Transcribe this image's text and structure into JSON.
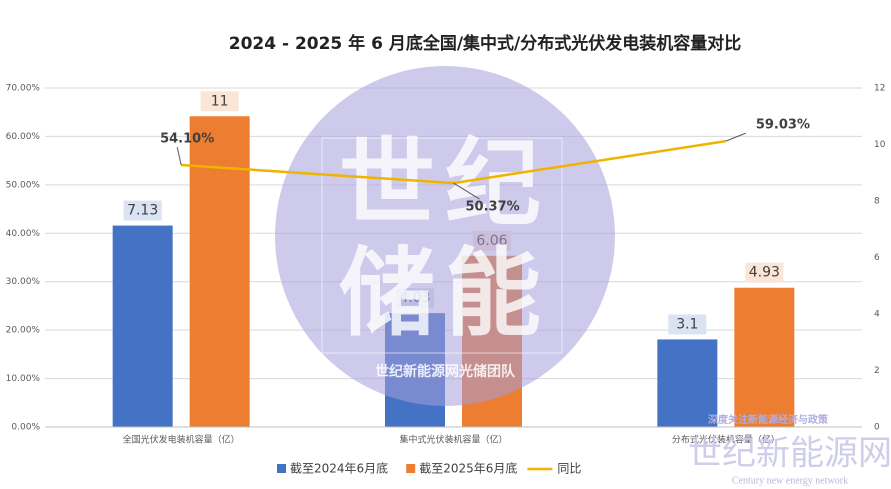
{
  "chart_data": {
    "type": "bar",
    "title": "2024 - 2025 年 6 月底全国/集中式/分布式光伏发电装机容量对比",
    "categories": [
      "全国光伏发电装机容量（亿）",
      "集中式光伏装机容量（亿）",
      "分布式光伏装机容量（亿）"
    ],
    "series": [
      {
        "name": "截至2024年6月底",
        "type": "bar",
        "axis": "y2",
        "color": "#4472c4",
        "values": [
          7.13,
          4.03,
          3.1
        ]
      },
      {
        "name": "截至2025年6月底",
        "type": "bar",
        "axis": "y2",
        "color": "#ed7d31",
        "values": [
          11,
          6.06,
          4.93
        ]
      },
      {
        "name": "同比",
        "type": "line",
        "axis": "y",
        "color": "#f0b400",
        "values": [
          54.1,
          50.37,
          59.03
        ],
        "value_labels": [
          "54.10%",
          "50.37%",
          "59.03%"
        ]
      }
    ],
    "ylim": [
      0,
      70
    ],
    "yticks": [
      {
        "value": 0,
        "label": "0.00%"
      },
      {
        "value": 10,
        "label": "10.00%"
      },
      {
        "value": 20,
        "label": "20.00%"
      },
      {
        "value": 30,
        "label": "30.00%"
      },
      {
        "value": 40,
        "label": "40.00%"
      },
      {
        "value": 50,
        "label": "50.00%"
      },
      {
        "value": 60,
        "label": "60.00%"
      },
      {
        "value": 70,
        "label": "70.00%"
      }
    ],
    "y2lim": [
      0,
      12
    ],
    "y2ticks": [
      0,
      2,
      4,
      6,
      8,
      10,
      12
    ],
    "grid": true,
    "legend": "bottom"
  },
  "watermark": {
    "lines": [
      "世纪",
      "储能"
    ],
    "team": "世纪新能源网光储团队",
    "tagline": "深度关注新能源经济与政策",
    "brand": "世纪新能源网",
    "brand_en": "Century new energy network"
  }
}
